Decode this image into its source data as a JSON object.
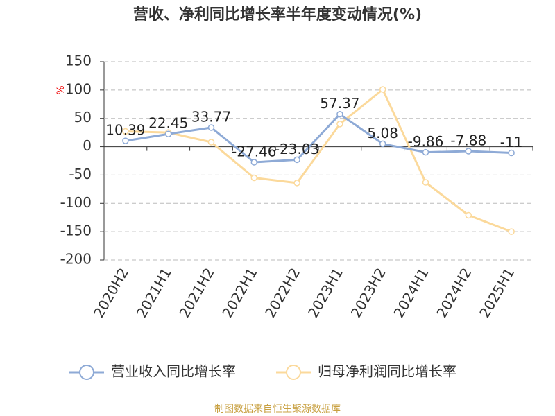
{
  "chart_data": {
    "type": "line",
    "title": "营收、净利同比增长率半年度变动情况(%)",
    "y_label": "%",
    "categories": [
      "2020H2",
      "2021H1",
      "2021H2",
      "2022H1",
      "2022H2",
      "2023H1",
      "2023H2",
      "2024H1",
      "2024H2",
      "2025H1"
    ],
    "series": [
      {
        "name": "营业收入同比增长率",
        "color": "#8eaad6",
        "values": [
          10.39,
          22.45,
          33.77,
          -27.46,
          -23.03,
          57.37,
          5.08,
          -9.86,
          -7.88,
          -11
        ],
        "show_labels": true
      },
      {
        "name": "归母净利润同比增长率",
        "color": "#fbd99b",
        "values": [
          27,
          25,
          8,
          -55,
          -64,
          40,
          101,
          -63,
          -121,
          -150
        ],
        "show_labels": false
      }
    ],
    "ylim": [
      -200,
      150
    ],
    "yticks": [
      -200,
      -150,
      -100,
      -50,
      0,
      50,
      100,
      150
    ],
    "grid": true,
    "source": "制图数据来自恒生聚源数据库"
  }
}
